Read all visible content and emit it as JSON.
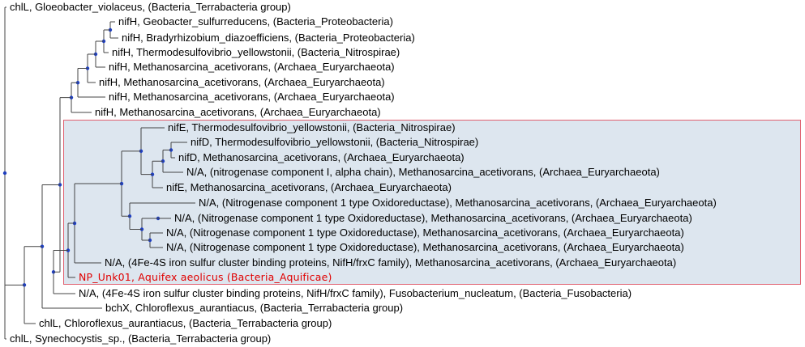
{
  "colors": {
    "branch": "#444444",
    "node": "#1f3fbf",
    "highlight_bg": "#dde6ef",
    "highlight_border": "#e06070",
    "query_label": "#e00000"
  },
  "leaves": [
    "chlL, Gloeobacter_violaceus, (Bacteria_Terrabacteria group)",
    "nifH, Geobacter_sulfurreducens, (Bacteria_Proteobacteria)",
    "nifH, Bradyrhizobium_diazoefficiens, (Bacteria_Proteobacteria)",
    "nifH, Thermodesulfovibrio_yellowstonii, (Bacteria_Nitrospirae)",
    "nifH, Methanosarcina_acetivorans, (Archaea_Euryarchaeota)",
    "nifH, Methanosarcina_acetivorans, (Archaea_Euryarchaeota)",
    "nifH, Methanosarcina_acetivorans, (Archaea_Euryarchaeota)",
    "nifH, Methanosarcina_acetivorans, (Archaea_Euryarchaeota)",
    "nifE, Thermodesulfovibrio_yellowstonii, (Bacteria_Nitrospirae)",
    "nifD, Thermodesulfovibrio_yellowstonii, (Bacteria_Nitrospirae)",
    "nifD, Methanosarcina_acetivorans, (Archaea_Euryarchaeota)",
    "N/A, (nitrogenase component I, alpha chain), Methanosarcina_acetivorans, (Archaea_Euryarchaeota)",
    "nifE, Methanosarcina_acetivorans, (Archaea_Euryarchaeota)",
    "N/A, (Nitrogenase component 1 type Oxidoreductase), Methanosarcina_acetivorans, (Archaea_Euryarchaeota)",
    "N/A, (Nitrogenase component 1 type Oxidoreductase), Methanosarcina_acetivorans, (Archaea_Euryarchaeota)",
    "N/A, (Nitrogenase component 1 type Oxidoreductase), Methanosarcina_acetivorans, (Archaea_Euryarchaeota)",
    "N/A, (Nitrogenase component 1 type Oxidoreductase), Methanosarcina_acetivorans, (Archaea_Euryarchaeota)",
    "N/A, (4Fe-4S iron sulfur cluster binding proteins, NifH/frxC family), Methanosarcina_acetivorans, (Archaea_Euryarchaeota)",
    "NP_Unk01, Aquifex aeolicus (Bacteria_Aquificae)",
    "N/A, (4Fe-4S iron sulfur cluster binding proteins, NifH/frxC family), Fusobacterium_nucleatum, (Bacteria_Fusobacteria)",
    "bchX, Chloroflexus_aurantiacus, (Bacteria_Terrabacteria group)",
    "chlL, Chloroflexus_aurantiacus, (Bacteria_Terrabacteria group)",
    "chlL, Synechocystis_sp., (Bacteria_Terrabacteria group)"
  ]
}
